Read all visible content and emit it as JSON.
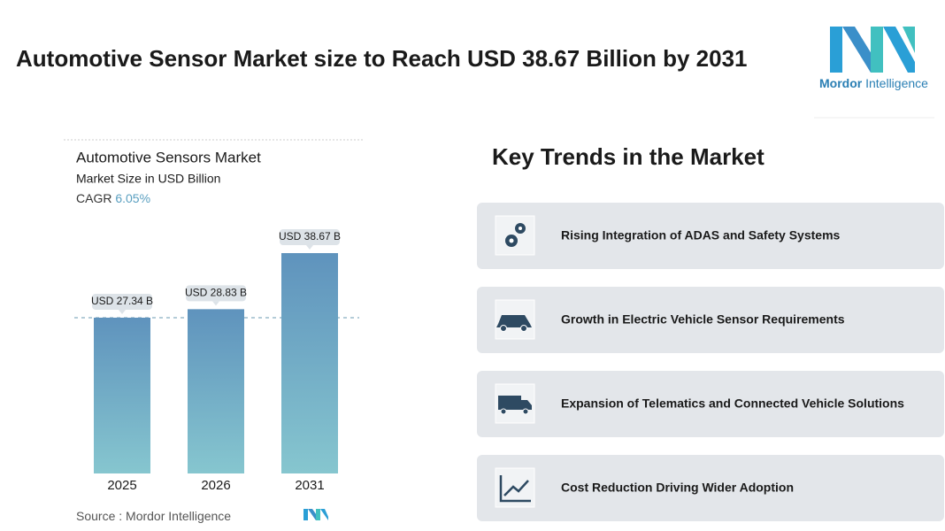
{
  "title": "Automotive Sensor Market size to Reach USD 38.67 Billion by 2031",
  "logo": {
    "brand": "Mordor",
    "brand2": "Intelligence"
  },
  "chart_data": {
    "type": "bar",
    "title": "Automotive Sensors Market",
    "subtitle": "Market Size in USD Billion",
    "cagr_label": "CAGR",
    "cagr": "6.05%",
    "categories": [
      "2025",
      "2026",
      "2031"
    ],
    "values": [
      27.34,
      28.83,
      38.67
    ],
    "value_labels": [
      "USD 27.34 B",
      "USD 28.83 B",
      "USD 38.67 B"
    ],
    "color_top": "#5f93bd",
    "color_bottom": "#86c6cf"
  },
  "source_label": "Source :",
  "source": "Mordor Intelligence",
  "trends_title": "Key Trends in the Market",
  "trends": [
    "Rising Integration of ADAS and Safety Systems",
    "Growth in Electric Vehicle Sensor Requirements",
    "Expansion of Telematics and Connected Vehicle Solutions",
    "Cost Reduction Driving Wider Adoption"
  ]
}
